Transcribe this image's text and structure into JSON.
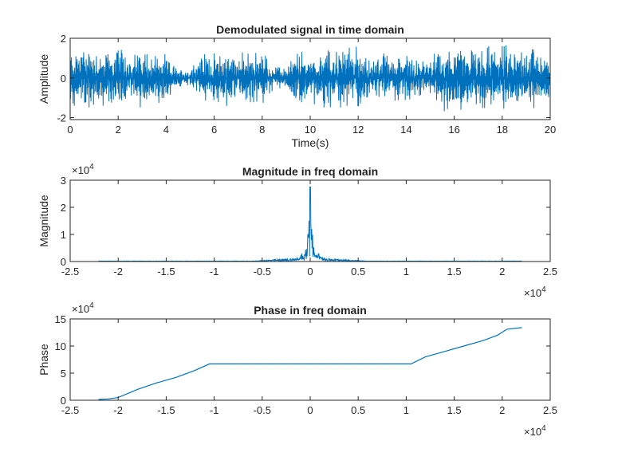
{
  "chart_data": [
    {
      "type": "line",
      "title": "Demodulated signal in time domain",
      "xlabel": "Time(s)",
      "ylabel": "Amplitude",
      "xlim": [
        0,
        20
      ],
      "ylim": [
        -2.1,
        2
      ],
      "xticks": [
        0,
        2,
        4,
        6,
        8,
        10,
        12,
        14,
        16,
        18,
        20
      ],
      "xtick_labels": [
        "0",
        "2",
        "4",
        "6",
        "8",
        "10",
        "12",
        "14",
        "16",
        "18",
        "20"
      ],
      "yticks": [
        -2,
        0,
        2
      ],
      "ytick_labels": [
        "-2",
        "0",
        "2"
      ],
      "color": "#0072BD",
      "envelope": {
        "x": [
          0,
          0.5,
          1,
          1.5,
          2,
          2.5,
          3,
          3.5,
          4,
          4.5,
          5,
          5.5,
          6,
          6.5,
          7,
          7.5,
          8,
          8.5,
          9,
          9.5,
          10,
          10.5,
          11,
          11.5,
          12,
          12.5,
          13,
          13.5,
          14,
          14.5,
          15,
          15.5,
          16,
          16.5,
          17,
          17.5,
          18,
          18.5,
          19,
          19.5,
          20
        ],
        "y": [
          1.5,
          1.9,
          1.7,
          1.5,
          1.8,
          1.3,
          1.7,
          1.5,
          1.2,
          0.5,
          0.6,
          1.5,
          1.3,
          1.7,
          1.3,
          1.5,
          1.6,
          0.6,
          0.7,
          1.6,
          1.3,
          1.8,
          1.5,
          1.9,
          1.7,
          1.0,
          1.5,
          1.3,
          1.4,
          1.0,
          1.1,
          1.7,
          1.9,
          1.8,
          1.5,
          1.8,
          1.9,
          1.5,
          2.0,
          1.7,
          1.2
        ]
      }
    },
    {
      "type": "line",
      "title": "Magnitude in freq domain",
      "xlabel": "",
      "ylabel": "Magnitude",
      "xlim": [
        -25000,
        25000
      ],
      "ylim": [
        0,
        30000
      ],
      "x_exponent_label": "×10",
      "x_exponent_power": "4",
      "y_exponent_label": "×10",
      "y_exponent_power": "4",
      "xticks": [
        -25000,
        -20000,
        -15000,
        -10000,
        -5000,
        0,
        5000,
        10000,
        15000,
        20000,
        25000
      ],
      "xtick_labels": [
        "-2.5",
        "-2",
        "-1.5",
        "-1",
        "-0.5",
        "0",
        "0.5",
        "1",
        "1.5",
        "2",
        "2.5"
      ],
      "yticks": [
        0,
        10000,
        20000,
        30000
      ],
      "ytick_labels": [
        "0",
        "1",
        "2",
        "3"
      ],
      "color": "#0072BD",
      "x_span": [
        -22050,
        22050
      ],
      "peak": {
        "x": 0,
        "y": 27500
      }
    },
    {
      "type": "line",
      "title": "Phase in freq domain",
      "xlabel": "",
      "ylabel": "Phase",
      "xlim": [
        -25000,
        25000
      ],
      "ylim": [
        0,
        150000
      ],
      "x_exponent_label": "×10",
      "x_exponent_power": "4",
      "y_exponent_label": "×10",
      "y_exponent_power": "4",
      "xticks": [
        -25000,
        -20000,
        -15000,
        -10000,
        -5000,
        0,
        5000,
        10000,
        15000,
        20000,
        25000
      ],
      "xtick_labels": [
        "-2.5",
        "-2",
        "-1.5",
        "-1",
        "-0.5",
        "0",
        "0.5",
        "1",
        "1.5",
        "2",
        "2.5"
      ],
      "yticks": [
        0,
        50000,
        100000,
        150000
      ],
      "ytick_labels": [
        "0",
        "5",
        "10",
        "15"
      ],
      "color": "#0072BD",
      "x": [
        -22050,
        -21000,
        -20000,
        -18000,
        -16000,
        -14000,
        -12000,
        -10500,
        -5000,
        0,
        5000,
        10500,
        12000,
        14000,
        16000,
        18000,
        19500,
        20500,
        22050
      ],
      "y": [
        1500,
        2500,
        5000,
        20000,
        32000,
        42000,
        55000,
        67000,
        67000,
        67000,
        67000,
        67000,
        80000,
        90000,
        100000,
        110000,
        120000,
        131000,
        134000
      ]
    }
  ]
}
